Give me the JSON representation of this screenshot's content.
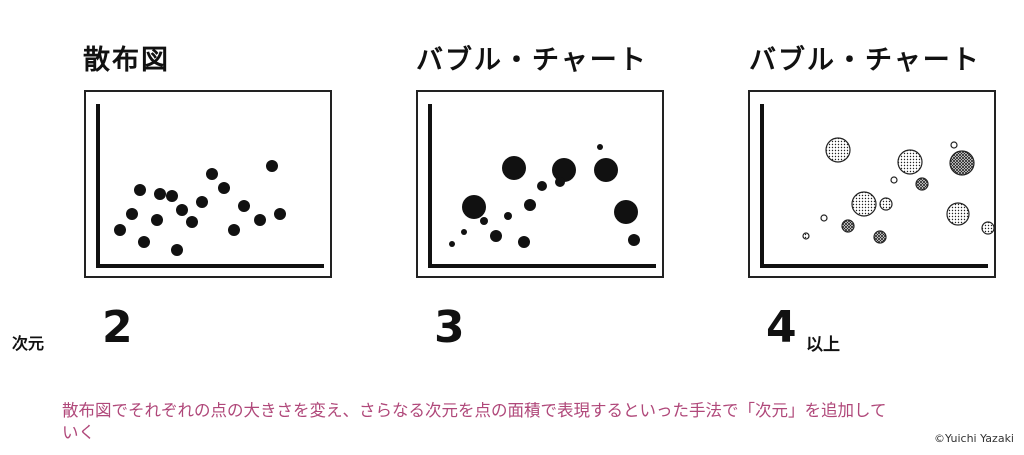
{
  "panels": [
    {
      "title": "散布図",
      "dimension": "2",
      "dimension_suffix": "",
      "chart_data": {
        "type": "scatter",
        "points": [
          [
            8,
            32
          ],
          [
            28,
            72
          ],
          [
            20,
            48
          ],
          [
            32,
            20
          ],
          [
            45,
            42
          ],
          [
            48,
            68
          ],
          [
            60,
            66
          ],
          [
            65,
            12
          ],
          [
            70,
            52
          ],
          [
            80,
            40
          ],
          [
            90,
            60
          ],
          [
            100,
            88
          ],
          [
            112,
            74
          ],
          [
            122,
            32
          ],
          [
            132,
            56
          ],
          [
            148,
            42
          ],
          [
            160,
            96
          ],
          [
            168,
            48
          ]
        ]
      }
    },
    {
      "title": "バブル・チャート",
      "dimension": "3",
      "dimension_suffix": "",
      "chart_data": {
        "type": "bubble",
        "points": [
          {
            "x": 30,
            "y": 55,
            "r": 12
          },
          {
            "x": 70,
            "y": 94,
            "r": 12
          },
          {
            "x": 120,
            "y": 92,
            "r": 12
          },
          {
            "x": 162,
            "y": 92,
            "r": 12
          },
          {
            "x": 182,
            "y": 50,
            "r": 12
          },
          {
            "x": 86,
            "y": 57,
            "r": 6
          },
          {
            "x": 98,
            "y": 76,
            "r": 5
          },
          {
            "x": 116,
            "y": 80,
            "r": 5
          },
          {
            "x": 52,
            "y": 26,
            "r": 6
          },
          {
            "x": 80,
            "y": 20,
            "r": 6
          },
          {
            "x": 64,
            "y": 46,
            "r": 4
          },
          {
            "x": 40,
            "y": 41,
            "r": 4
          },
          {
            "x": 20,
            "y": 30,
            "r": 3
          },
          {
            "x": 8,
            "y": 18,
            "r": 3
          },
          {
            "x": 156,
            "y": 115,
            "r": 3
          },
          {
            "x": 190,
            "y": 22,
            "r": 6
          }
        ]
      }
    },
    {
      "title": "バブル・チャート",
      "dimension": "4",
      "dimension_suffix": "以上",
      "chart_data": {
        "type": "bubble",
        "dimensions": [
          "x",
          "y",
          "size",
          "fill pattern"
        ],
        "points": [
          {
            "x": 62,
            "y": 112,
            "r": 12,
            "fill": "dots"
          },
          {
            "x": 134,
            "y": 100,
            "r": 12,
            "fill": "dots"
          },
          {
            "x": 186,
            "y": 99,
            "r": 12,
            "fill": "crosshatch"
          },
          {
            "x": 88,
            "y": 58,
            "r": 12,
            "fill": "dots"
          },
          {
            "x": 182,
            "y": 48,
            "r": 11,
            "fill": "dots"
          },
          {
            "x": 110,
            "y": 58,
            "r": 6,
            "fill": "dots"
          },
          {
            "x": 146,
            "y": 78,
            "r": 6,
            "fill": "crosshatch"
          },
          {
            "x": 72,
            "y": 36,
            "r": 6,
            "fill": "crosshatch"
          },
          {
            "x": 104,
            "y": 25,
            "r": 6,
            "fill": "crosshatch"
          },
          {
            "x": 212,
            "y": 34,
            "r": 6,
            "fill": "dots"
          },
          {
            "x": 118,
            "y": 82,
            "r": 3,
            "fill": "solid"
          },
          {
            "x": 48,
            "y": 44,
            "r": 3,
            "fill": "solid"
          },
          {
            "x": 30,
            "y": 26,
            "r": 3,
            "fill": "dots"
          },
          {
            "x": 178,
            "y": 117,
            "r": 3,
            "fill": "solid"
          }
        ]
      }
    }
  ],
  "dimension_label": "次元",
  "caption": "散布図でそれぞれの点の大きさを変え、さらなる次元を点の面積で表現するといった手法で「次元」を追加していく",
  "credit": "©Yuichi Yazaki"
}
